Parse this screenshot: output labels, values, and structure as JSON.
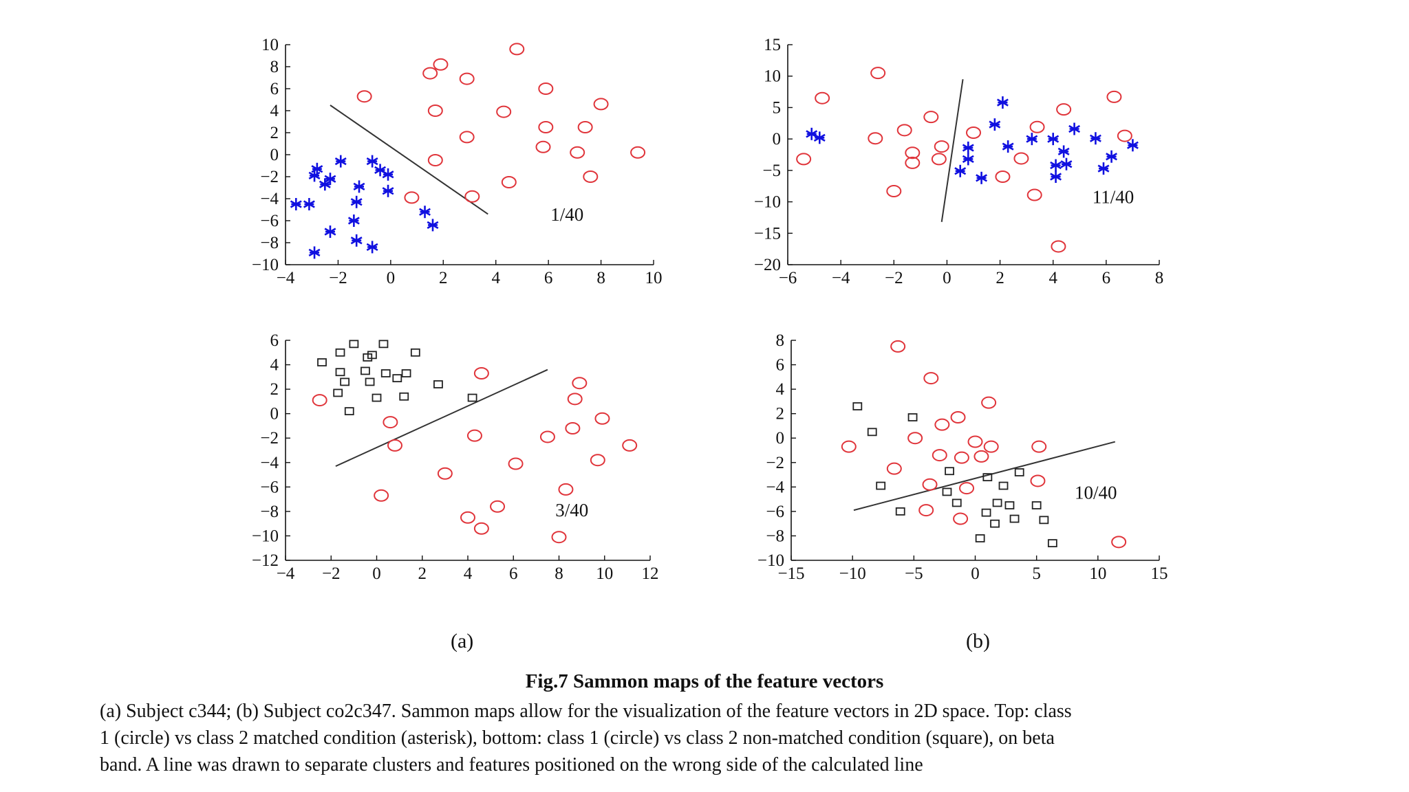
{
  "figure": {
    "title": "Fig.7  Sammon maps of the feature vectors",
    "caption_lines": [
      "(a) Subject c344; (b) Subject co2c347. Sammon maps allow for the visualization of the feature vectors in 2D space. Top: class",
      "1 (circle) vs class 2 matched condition (asterisk), bottom: class 1 (circle) vs class 2 non-matched condition (square), on beta",
      "band. A line was drawn to separate clusters and features positioned on the wrong side of the calculated line"
    ],
    "sublabels": {
      "a": "(a)",
      "b": "(b)"
    }
  },
  "colors": {
    "circle": "#e0343a",
    "asterisk": "#1010e0",
    "square": "#222222",
    "axis": "#111111",
    "line": "#333333"
  },
  "chart_data": [
    {
      "id": "a-top",
      "type": "scatter",
      "annotation": "1/40",
      "xlim": [
        -4,
        10
      ],
      "ylim": [
        -10,
        10
      ],
      "xticks": [
        -4,
        -2,
        0,
        2,
        4,
        6,
        8,
        10
      ],
      "yticks": [
        -10,
        -8,
        -6,
        -4,
        -2,
        0,
        2,
        4,
        6,
        8,
        10
      ],
      "separator": [
        [
          -2.3,
          4.5
        ],
        [
          3.7,
          -5.4
        ]
      ],
      "series": [
        {
          "marker": "circle",
          "points": [
            [
              4.8,
              9.6
            ],
            [
              1.9,
              8.2
            ],
            [
              1.5,
              7.4
            ],
            [
              2.9,
              6.9
            ],
            [
              5.9,
              6.0
            ],
            [
              -1.0,
              5.3
            ],
            [
              8.0,
              4.6
            ],
            [
              1.7,
              4.0
            ],
            [
              4.3,
              3.9
            ],
            [
              5.9,
              2.5
            ],
            [
              7.4,
              2.5
            ],
            [
              2.9,
              1.6
            ],
            [
              5.8,
              0.7
            ],
            [
              7.1,
              0.2
            ],
            [
              9.4,
              0.2
            ],
            [
              1.7,
              -0.5
            ],
            [
              7.6,
              -2.0
            ],
            [
              4.5,
              -2.5
            ],
            [
              3.1,
              -3.8
            ],
            [
              0.8,
              -3.9
            ]
          ]
        },
        {
          "marker": "asterisk",
          "points": [
            [
              -2.8,
              -1.3
            ],
            [
              -2.9,
              -1.9
            ],
            [
              -1.9,
              -0.6
            ],
            [
              -0.7,
              -0.6
            ],
            [
              -0.4,
              -1.4
            ],
            [
              -0.1,
              -1.8
            ],
            [
              -2.3,
              -2.2
            ],
            [
              -2.5,
              -2.7
            ],
            [
              -1.2,
              -2.9
            ],
            [
              -0.1,
              -3.3
            ],
            [
              -1.3,
              -4.3
            ],
            [
              -3.6,
              -4.5
            ],
            [
              -3.1,
              -4.5
            ],
            [
              1.3,
              -5.2
            ],
            [
              -1.4,
              -6.0
            ],
            [
              1.6,
              -6.4
            ],
            [
              -2.3,
              -7.0
            ],
            [
              -1.3,
              -7.8
            ],
            [
              -0.7,
              -8.4
            ],
            [
              -2.9,
              -8.9
            ]
          ]
        }
      ]
    },
    {
      "id": "b-top",
      "type": "scatter",
      "annotation": "11/40",
      "xlim": [
        -6,
        8
      ],
      "ylim": [
        -20,
        15
      ],
      "xticks": [
        -6,
        -4,
        -2,
        0,
        2,
        4,
        6,
        8
      ],
      "yticks": [
        -20,
        -15,
        -10,
        -5,
        0,
        5,
        10,
        15
      ],
      "separator": [
        [
          -0.2,
          -13.2
        ],
        [
          0.6,
          9.5
        ]
      ],
      "series": [
        {
          "marker": "circle",
          "points": [
            [
              -2.6,
              10.5
            ],
            [
              -4.7,
              6.5
            ],
            [
              6.3,
              6.7
            ],
            [
              4.4,
              4.7
            ],
            [
              -0.6,
              3.5
            ],
            [
              3.4,
              1.9
            ],
            [
              -1.6,
              1.4
            ],
            [
              1.0,
              1.0
            ],
            [
              -2.7,
              0.1
            ],
            [
              6.7,
              0.5
            ],
            [
              -0.2,
              -1.2
            ],
            [
              -1.3,
              -2.2
            ],
            [
              -1.3,
              -3.8
            ],
            [
              -0.3,
              -3.2
            ],
            [
              -5.4,
              -3.2
            ],
            [
              2.8,
              -3.1
            ],
            [
              2.1,
              -6.0
            ],
            [
              -2.0,
              -8.3
            ],
            [
              3.3,
              -8.9
            ],
            [
              4.2,
              -17.1
            ]
          ]
        },
        {
          "marker": "asterisk",
          "points": [
            [
              -5.1,
              0.8
            ],
            [
              -4.8,
              0.2
            ],
            [
              2.1,
              5.8
            ],
            [
              1.8,
              2.3
            ],
            [
              4.8,
              1.6
            ],
            [
              3.2,
              0.0
            ],
            [
              4.0,
              0.0
            ],
            [
              5.6,
              0.1
            ],
            [
              0.8,
              -1.4
            ],
            [
              2.3,
              -1.2
            ],
            [
              4.4,
              -2.0
            ],
            [
              7.0,
              -1.0
            ],
            [
              0.8,
              -3.2
            ],
            [
              4.1,
              -4.2
            ],
            [
              4.5,
              -4.0
            ],
            [
              6.2,
              -2.8
            ],
            [
              0.5,
              -5.1
            ],
            [
              5.9,
              -4.7
            ],
            [
              1.3,
              -6.2
            ],
            [
              4.1,
              -6.0
            ]
          ]
        }
      ]
    },
    {
      "id": "a-bottom",
      "type": "scatter",
      "annotation": "3/40",
      "xlim": [
        -4,
        12
      ],
      "ylim": [
        -12,
        6
      ],
      "xticks": [
        -4,
        -2,
        0,
        2,
        4,
        6,
        8,
        10,
        12
      ],
      "yticks": [
        -12,
        -10,
        -8,
        -6,
        -4,
        -2,
        0,
        2,
        4,
        6
      ],
      "separator": [
        [
          -1.8,
          -4.3
        ],
        [
          7.5,
          3.6
        ]
      ],
      "series": [
        {
          "marker": "circle",
          "points": [
            [
              4.6,
              3.3
            ],
            [
              8.9,
              2.5
            ],
            [
              8.7,
              1.2
            ],
            [
              -2.5,
              1.1
            ],
            [
              9.9,
              -0.4
            ],
            [
              0.6,
              -0.7
            ],
            [
              4.3,
              -1.8
            ],
            [
              7.5,
              -1.9
            ],
            [
              8.6,
              -1.2
            ],
            [
              11.1,
              -2.6
            ],
            [
              0.8,
              -2.6
            ],
            [
              9.7,
              -3.8
            ],
            [
              6.1,
              -4.1
            ],
            [
              3.0,
              -4.9
            ],
            [
              0.2,
              -6.7
            ],
            [
              8.3,
              -6.2
            ],
            [
              5.3,
              -7.6
            ],
            [
              4.0,
              -8.5
            ],
            [
              4.6,
              -9.4
            ],
            [
              8.0,
              -10.1
            ]
          ]
        },
        {
          "marker": "square",
          "points": [
            [
              -1.0,
              5.7
            ],
            [
              0.3,
              5.7
            ],
            [
              -1.6,
              5.0
            ],
            [
              1.7,
              5.0
            ],
            [
              -0.2,
              4.8
            ],
            [
              -0.4,
              4.6
            ],
            [
              -2.4,
              4.2
            ],
            [
              -1.6,
              3.4
            ],
            [
              -0.5,
              3.5
            ],
            [
              0.4,
              3.3
            ],
            [
              1.3,
              3.3
            ],
            [
              -1.4,
              2.6
            ],
            [
              -0.3,
              2.6
            ],
            [
              0.9,
              2.9
            ],
            [
              2.7,
              2.4
            ],
            [
              -1.7,
              1.7
            ],
            [
              1.2,
              1.4
            ],
            [
              0.0,
              1.3
            ],
            [
              4.2,
              1.3
            ],
            [
              -1.2,
              0.2
            ]
          ]
        }
      ]
    },
    {
      "id": "b-bottom",
      "type": "scatter",
      "annotation": "10/40",
      "xlim": [
        -15,
        15
      ],
      "ylim": [
        -10,
        8
      ],
      "xticks": [
        -15,
        -10,
        -5,
        0,
        5,
        10,
        15
      ],
      "yticks": [
        -10,
        -8,
        -6,
        -4,
        -2,
        0,
        2,
        4,
        6,
        8
      ],
      "separator": [
        [
          -9.9,
          -5.9
        ],
        [
          11.4,
          -0.3
        ]
      ],
      "series": [
        {
          "marker": "circle",
          "points": [
            [
              -6.3,
              7.5
            ],
            [
              -3.6,
              4.9
            ],
            [
              1.1,
              2.9
            ],
            [
              -2.7,
              1.1
            ],
            [
              -1.4,
              1.7
            ],
            [
              -4.9,
              0.0
            ],
            [
              -10.3,
              -0.7
            ],
            [
              0.0,
              -0.3
            ],
            [
              1.3,
              -0.7
            ],
            [
              5.2,
              -0.7
            ],
            [
              -2.9,
              -1.4
            ],
            [
              -1.1,
              -1.6
            ],
            [
              0.5,
              -1.5
            ],
            [
              -6.6,
              -2.5
            ],
            [
              5.1,
              -3.5
            ],
            [
              -3.7,
              -3.8
            ],
            [
              -0.7,
              -4.1
            ],
            [
              -4.0,
              -5.9
            ],
            [
              -1.2,
              -6.6
            ],
            [
              11.7,
              -8.5
            ]
          ]
        },
        {
          "marker": "square",
          "points": [
            [
              -9.6,
              2.6
            ],
            [
              -5.1,
              1.7
            ],
            [
              -8.4,
              0.5
            ],
            [
              -7.7,
              -3.9
            ],
            [
              -2.1,
              -2.7
            ],
            [
              3.6,
              -2.8
            ],
            [
              2.3,
              -3.9
            ],
            [
              -2.3,
              -4.4
            ],
            [
              1.0,
              -3.2
            ],
            [
              -6.1,
              -6.0
            ],
            [
              -1.5,
              -5.3
            ],
            [
              1.8,
              -5.3
            ],
            [
              2.8,
              -5.5
            ],
            [
              5.0,
              -5.5
            ],
            [
              0.9,
              -6.1
            ],
            [
              3.2,
              -6.6
            ],
            [
              1.6,
              -7.0
            ],
            [
              5.6,
              -6.7
            ],
            [
              0.4,
              -8.2
            ],
            [
              6.3,
              -8.6
            ]
          ]
        }
      ]
    }
  ]
}
